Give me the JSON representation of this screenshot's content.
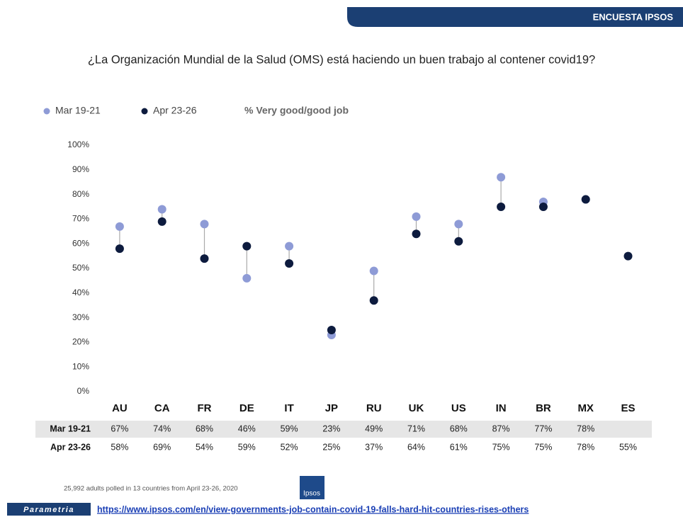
{
  "header": "ENCUESTA IPSOS",
  "chart_data": {
    "type": "dumbbell",
    "title": "¿La Organización Mundial de la Salud (OMS) está haciendo un buen trabajo al contener covid19?",
    "subtitle": "% Very good/good job",
    "categories": [
      "AU",
      "CA",
      "FR",
      "DE",
      "IT",
      "JP",
      "RU",
      "UK",
      "US",
      "IN",
      "BR",
      "MX",
      "ES"
    ],
    "series": [
      {
        "name": "Mar 19-21",
        "color": "#8e9bd6",
        "values": [
          67,
          74,
          68,
          46,
          59,
          23,
          49,
          71,
          68,
          87,
          77,
          78,
          null
        ],
        "value_labels": [
          "67%",
          "74%",
          "68%",
          "46%",
          "59%",
          "23%",
          "49%",
          "71%",
          "68%",
          "87%",
          "77%",
          "78%",
          null
        ]
      },
      {
        "name": "Apr 23-26",
        "color": "#0d1b3e",
        "values": [
          58,
          69,
          54,
          59,
          52,
          25,
          37,
          64,
          61,
          75,
          75,
          78,
          55
        ],
        "value_labels": [
          "58%",
          "69%",
          "54%",
          "59%",
          "52%",
          "25%",
          "37%",
          "64%",
          "61%",
          "75%",
          "75%",
          "78%",
          "55%"
        ]
      }
    ],
    "ylim": [
      0,
      100
    ],
    "yticks": [
      {
        "value": 0,
        "label": "0%"
      },
      {
        "value": 10,
        "label": "10%"
      },
      {
        "value": 20,
        "label": "20%"
      },
      {
        "value": 30,
        "label": "30%"
      },
      {
        "value": 40,
        "label": "40%"
      },
      {
        "value": 50,
        "label": "50%"
      },
      {
        "value": 60,
        "label": "60%"
      },
      {
        "value": 70,
        "label": "70%"
      },
      {
        "value": 80,
        "label": "80%"
      },
      {
        "value": 90,
        "label": "90%"
      },
      {
        "value": 100,
        "label": "100%"
      }
    ],
    "grid": false
  },
  "footnote": "25,992 adults polled in 13 countries from April 23-26, 2020",
  "logo": "Ipsos",
  "brand": "Parametria",
  "link": "https://www.ipsos.com/en/view-governments-job-contain-covid-19-falls-hard-hit-countries-rises-others"
}
